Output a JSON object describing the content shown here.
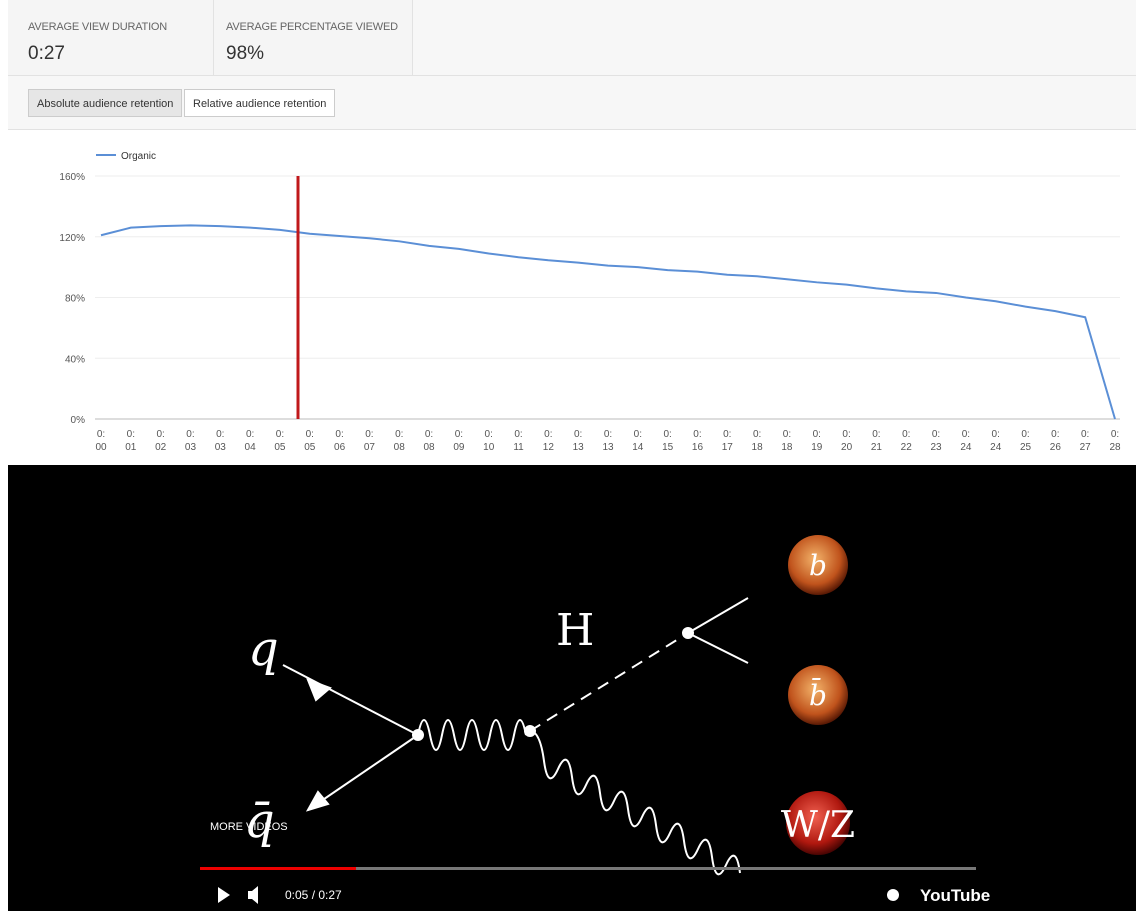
{
  "metrics": [
    {
      "label": "AVERAGE VIEW DURATION",
      "value": "0:27"
    },
    {
      "label": "AVERAGE PERCENTAGE VIEWED",
      "value": "98%"
    }
  ],
  "toggles": [
    "Absolute audience retention",
    "Relative audience retention"
  ],
  "chart_data": {
    "type": "line",
    "categories": [
      "0:\n00",
      "0:\n01",
      "0:\n02",
      "0:\n03",
      "0:\n03",
      "0:\n04",
      "0:\n05",
      "0:\n05",
      "0:\n06",
      "0:\n07",
      "0:\n08",
      "0:\n08",
      "0:\n09",
      "0:\n10",
      "0:\n11",
      "0:\n12",
      "0:\n13",
      "0:\n13",
      "0:\n14",
      "0:\n15",
      "0:\n16",
      "0:\n17",
      "0:\n18",
      "0:\n18",
      "0:\n19",
      "0:\n20",
      "0:\n21",
      "0:\n22",
      "0:\n23",
      "0:\n24",
      "0:\n24",
      "0:\n25",
      "0:\n26",
      "0:\n27",
      "0:\n28"
    ],
    "series": [
      {
        "name": "Organic",
        "color": "#5b8fd6",
        "values": [
          121,
          126,
          127,
          127.5,
          127,
          126,
          124.5,
          122,
          120.5,
          119,
          117,
          114,
          112,
          109,
          106.5,
          104.5,
          103,
          101,
          100,
          98,
          97,
          95,
          94,
          92,
          90,
          88.5,
          86,
          84,
          83,
          80,
          77.5,
          74,
          71,
          67,
          0
        ]
      }
    ],
    "ylim": [
      0,
      160
    ],
    "yticks": [
      {
        "value": 0,
        "label": "0%"
      },
      {
        "value": 40,
        "label": "40%"
      },
      {
        "value": 80,
        "label": "80%"
      },
      {
        "value": 120,
        "label": "120%"
      },
      {
        "value": 160,
        "label": "160%"
      }
    ],
    "grid": true
  },
  "video": {
    "q": "q",
    "qbar": "q̄",
    "higgs": "H",
    "b": "b",
    "bbar": "b̄",
    "wz": "W/Z",
    "more": "MORE VIDEOS",
    "time": "0:05 / 0:27",
    "brand": "YouTube"
  }
}
